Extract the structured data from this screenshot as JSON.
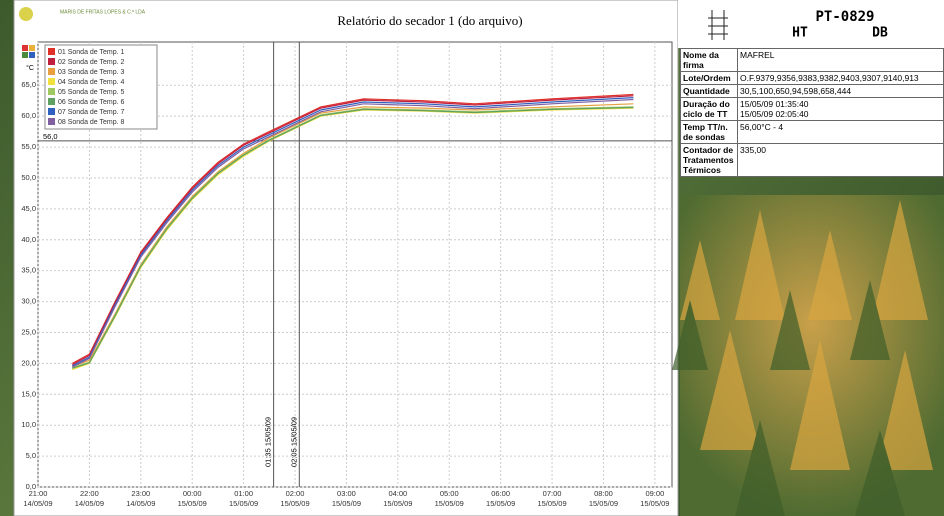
{
  "header": {
    "logo_text": "MARIS DE FRITAS LOPES & C.ª LDA",
    "badge": {
      "code": "PT-0829",
      "left": "HT",
      "right": "DB"
    }
  },
  "table": {
    "rows": [
      [
        "Nome da firma",
        "MAFREL"
      ],
      [
        "Lote/Ordem",
        "O.F.9379,9356,9383,9382,9403,9307,9140,913"
      ],
      [
        "Quantidade",
        "30,5,100,650,94,598,658,444"
      ],
      [
        "Duração do ciclo de TT",
        [
          "15/05/09 01:35:40",
          "15/05/09 02:05:40"
        ]
      ],
      [
        "Temp TT/n. de sondas",
        "56,00°C - 4"
      ],
      [
        "Contador de Tratamentos Térmicos",
        "335,00"
      ]
    ]
  },
  "chart_data": {
    "type": "line",
    "title": "Relatório do secador 1 (do arquivo)",
    "y_unit": "°C",
    "x": [
      "14/05/09 21:40",
      "14/05/09 22:00",
      "14/05/09 22:30",
      "14/05/09 23:00",
      "14/05/09 23:30",
      "15/05/09 00:00",
      "15/05/09 00:30",
      "15/05/09 01:00",
      "15/05/09 01:30",
      "15/05/09 02:00",
      "15/05/09 02:30",
      "15/05/09 03:20",
      "15/05/09 04:30",
      "15/05/09 05:30",
      "15/05/09 07:00",
      "15/05/09 08:35"
    ],
    "series": [
      {
        "name": "01 Sonda de Temp. 1",
        "color": "#e0302a",
        "values": [
          20.0,
          21.5,
          30.0,
          38.0,
          43.5,
          48.5,
          52.5,
          55.5,
          57.5,
          59.5,
          61.5,
          62.8,
          62.5,
          62.0,
          62.8,
          63.5
        ]
      },
      {
        "name": "02 Sonda de Temp. 2",
        "color": "#c02040",
        "values": [
          19.8,
          21.3,
          29.8,
          37.8,
          43.3,
          48.3,
          52.3,
          55.3,
          57.3,
          59.3,
          61.3,
          62.6,
          62.3,
          61.8,
          62.6,
          63.3
        ]
      },
      {
        "name": "03 Sonda de Temp. 3",
        "color": "#e8a040",
        "values": [
          19.5,
          20.5,
          28.0,
          36.0,
          42.0,
          47.0,
          51.0,
          54.0,
          56.5,
          58.5,
          60.5,
          61.5,
          61.3,
          61.0,
          61.5,
          62.0
        ]
      },
      {
        "name": "04 Sonda de Temp. 4",
        "color": "#f0e040",
        "values": [
          19.0,
          20.0,
          27.5,
          35.5,
          41.5,
          46.5,
          50.5,
          53.5,
          56.0,
          58.0,
          60.0,
          61.0,
          60.8,
          60.5,
          61.0,
          61.3
        ]
      },
      {
        "name": "05 Sonda de Temp. 5",
        "color": "#a0c860",
        "values": [
          19.3,
          20.2,
          27.8,
          35.8,
          41.8,
          46.8,
          50.8,
          53.8,
          56.2,
          58.2,
          60.2,
          61.2,
          61.0,
          60.7,
          61.2,
          61.5
        ]
      },
      {
        "name": "06 Sonda de Temp. 6",
        "color": "#60a060",
        "values": [
          19.2,
          20.1,
          27.7,
          35.7,
          41.7,
          46.7,
          50.7,
          53.7,
          56.1,
          58.1,
          60.1,
          61.1,
          60.9,
          60.6,
          61.1,
          61.4
        ]
      },
      {
        "name": "07 Sonda de Temp. 7",
        "color": "#3060c0",
        "values": [
          19.6,
          21.0,
          29.5,
          37.5,
          43.0,
          48.0,
          52.0,
          55.0,
          57.0,
          59.0,
          61.0,
          62.3,
          62.0,
          61.5,
          62.3,
          63.0
        ]
      },
      {
        "name": "08 Sonda de Temp. 8",
        "color": "#8060a0",
        "values": [
          19.4,
          20.8,
          29.2,
          37.2,
          42.7,
          47.7,
          51.7,
          54.7,
          56.7,
          58.7,
          60.7,
          62.0,
          61.7,
          61.2,
          62.0,
          62.7
        ]
      }
    ],
    "xlim": [
      "14/05/09 21:00",
      "15/05/09 09:20"
    ],
    "xticks": [
      {
        "value": "14/05/09 21:00",
        "label": [
          "21:00",
          "14/05/09"
        ]
      },
      {
        "value": "14/05/09 22:00",
        "label": [
          "22:00",
          "14/05/09"
        ]
      },
      {
        "value": "14/05/09 23:00",
        "label": [
          "23:00",
          "14/05/09"
        ]
      },
      {
        "value": "15/05/09 00:00",
        "label": [
          "00:00",
          "15/05/09"
        ]
      },
      {
        "value": "15/05/09 01:00",
        "label": [
          "01:00",
          "15/05/09"
        ]
      },
      {
        "value": "15/05/09 02:00",
        "label": [
          "02:00",
          "15/05/09"
        ]
      },
      {
        "value": "15/05/09 03:00",
        "label": [
          "03:00",
          "15/05/09"
        ]
      },
      {
        "value": "15/05/09 04:00",
        "label": [
          "04:00",
          "15/05/09"
        ]
      },
      {
        "value": "15/05/09 05:00",
        "label": [
          "05:00",
          "15/05/09"
        ]
      },
      {
        "value": "15/05/09 06:00",
        "label": [
          "06:00",
          "15/05/09"
        ]
      },
      {
        "value": "15/05/09 07:00",
        "label": [
          "07:00",
          "15/05/09"
        ]
      },
      {
        "value": "15/05/09 08:00",
        "label": [
          "08:00",
          "15/05/09"
        ]
      },
      {
        "value": "15/05/09 09:00",
        "label": [
          "09:00",
          "15/05/09"
        ]
      }
    ],
    "ylim": [
      0,
      72
    ],
    "yticks": [
      {
        "value": 0,
        "label": "0,0"
      },
      {
        "value": 5,
        "label": "5,0"
      },
      {
        "value": 10,
        "label": "10,0"
      },
      {
        "value": 15,
        "label": "15,0"
      },
      {
        "value": 20,
        "label": "20,0"
      },
      {
        "value": 25,
        "label": "25,0"
      },
      {
        "value": 30,
        "label": "30,0"
      },
      {
        "value": 35,
        "label": "35,0"
      },
      {
        "value": 40,
        "label": "40,0"
      },
      {
        "value": 45,
        "label": "45,0"
      },
      {
        "value": 50,
        "label": "50,0"
      },
      {
        "value": 55,
        "label": "55,0"
      },
      {
        "value": 60,
        "label": "60,0"
      },
      {
        "value": 65,
        "label": "65,0"
      }
    ],
    "grid": true,
    "legend": "top-left",
    "hline": {
      "value": 56,
      "label": "56,0"
    },
    "vlines": [
      {
        "x": "15/05/09 01:35",
        "label": "01:35 15/05/09"
      },
      {
        "x": "15/05/09 02:05",
        "label": "02:05 15/05/09"
      }
    ]
  }
}
